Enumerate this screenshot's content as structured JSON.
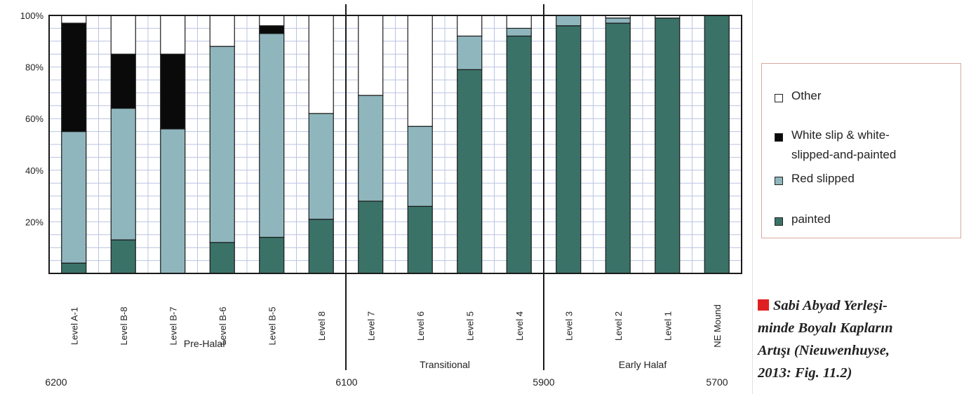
{
  "chart_data": {
    "type": "bar",
    "stacked": true,
    "categories": [
      "Level A-1",
      "Level B-8",
      "Level B-7",
      "Level B-6",
      "Level B-5",
      "Level 8",
      "Level 7",
      "Level 6",
      "Level 5",
      "Level 4",
      "Level 3",
      "Level 2",
      "Level 1",
      "NE Mound"
    ],
    "series": [
      {
        "name": "painted",
        "color": "#3a7268",
        "values": [
          4,
          13,
          0,
          12,
          14,
          21,
          28,
          26,
          79,
          92,
          96,
          97,
          99,
          100
        ]
      },
      {
        "name": "Red slipped",
        "color": "#8fb6bd",
        "values": [
          51,
          51,
          56,
          76,
          79,
          41,
          41,
          31,
          13,
          3,
          4,
          2,
          0,
          0
        ]
      },
      {
        "name": "White slip & white-\nslipped-and-painted",
        "color": "#0a0a0a",
        "values": [
          42,
          21,
          29,
          0,
          3,
          0,
          0,
          0,
          0,
          0,
          0,
          0,
          0,
          0
        ]
      },
      {
        "name": "Other",
        "color": "#ffffff",
        "values": [
          3,
          15,
          15,
          12,
          4,
          38,
          31,
          43,
          8,
          5,
          0,
          1,
          1,
          0
        ]
      }
    ],
    "ylim": [
      0,
      100
    ],
    "yticks": [
      "20%",
      "40%",
      "60%",
      "80%",
      "100%"
    ],
    "grid": true,
    "periods": [
      "Pre-Halaf",
      "Transitional",
      "Early Halaf"
    ],
    "dates": [
      "6200",
      "6100",
      "5900",
      "5700"
    ],
    "legend_position": "right"
  },
  "legend": {
    "items": [
      {
        "label": "Other",
        "color": "#ffffff"
      },
      {
        "label": "White slip & white-\nslipped-and-painted",
        "color": "#0a0a0a"
      },
      {
        "label": "Red slipped",
        "color": "#8fb6bd"
      },
      {
        "label": "painted",
        "color": "#3a7268"
      }
    ]
  },
  "caption": {
    "text": "Sabi Abyad Yerleşi-\nminde Boyalı Kapların\nArtışı (Nieuwenhuyse,\n2013: Fig. 11.2)",
    "marker_color": "#e02020"
  }
}
